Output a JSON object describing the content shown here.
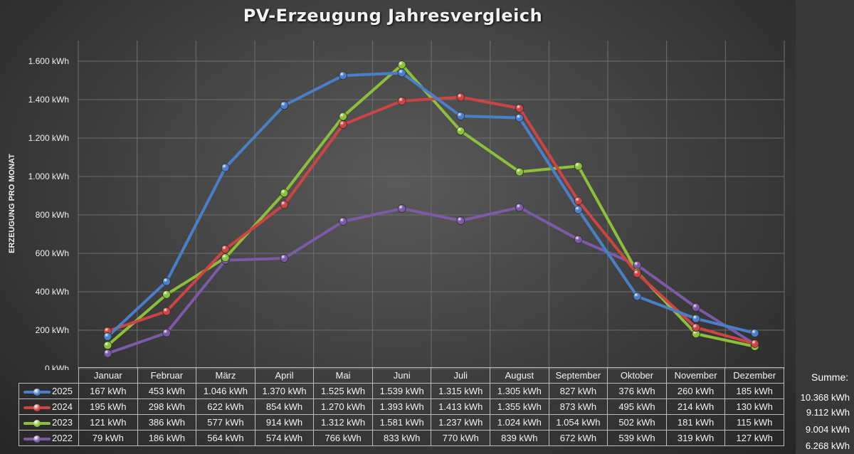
{
  "chart_data": {
    "type": "line",
    "title": "PV-Erzeugung Jahresvergleich",
    "xlabel": "",
    "ylabel": "ERZEUGUNG PRO MONAT",
    "ylim": [
      0,
      1700
    ],
    "yticks": [
      0,
      200,
      400,
      600,
      800,
      1000,
      1200,
      1400,
      1600
    ],
    "ytick_labels": [
      "0 kWh",
      "200 kWh",
      "400 kWh",
      "600 kWh",
      "800 kWh",
      "1.000 kWh",
      "1.200 kWh",
      "1.400 kWh",
      "1.600 kWh"
    ],
    "grid": true,
    "legend": "data-table",
    "categories": [
      "Januar",
      "Februar",
      "März",
      "April",
      "Mai",
      "Juni",
      "Juli",
      "August",
      "September",
      "Oktober",
      "November",
      "Dezember"
    ],
    "series": [
      {
        "name": "2025",
        "color": "#4a7fc8",
        "values": [
          167,
          453,
          1046,
          1370,
          1525,
          1539,
          1315,
          1305,
          827,
          376,
          260,
          185
        ],
        "labels": [
          "167 kWh",
          "453 kWh",
          "1.046 kWh",
          "1.370 kWh",
          "1.525 kWh",
          "1.539 kWh",
          "1.315 kWh",
          "1.305 kWh",
          "827 kWh",
          "376 kWh",
          "260 kWh",
          "185 kWh"
        ]
      },
      {
        "name": "2024",
        "color": "#cc4444",
        "values": [
          195,
          298,
          622,
          854,
          1270,
          1393,
          1413,
          1355,
          873,
          495,
          214,
          130
        ],
        "labels": [
          "195 kWh",
          "298 kWh",
          "622 kWh",
          "854 kWh",
          "1.270 kWh",
          "1.393 kWh",
          "1.413 kWh",
          "1.355 kWh",
          "873 kWh",
          "495 kWh",
          "214 kWh",
          "130 kWh"
        ]
      },
      {
        "name": "2023",
        "color": "#8cbf3a",
        "values": [
          121,
          386,
          577,
          914,
          1312,
          1581,
          1237,
          1024,
          1054,
          502,
          181,
          115
        ],
        "labels": [
          "121 kWh",
          "386 kWh",
          "577 kWh",
          "914 kWh",
          "1.312 kWh",
          "1.581 kWh",
          "1.237 kWh",
          "1.024 kWh",
          "1.054 kWh",
          "502 kWh",
          "181 kWh",
          "115 kWh"
        ]
      },
      {
        "name": "2022",
        "color": "#7b5aa6",
        "values": [
          79,
          186,
          564,
          574,
          766,
          833,
          770,
          839,
          672,
          539,
          319,
          127
        ],
        "labels": [
          "79 kWh",
          "186 kWh",
          "564 kWh",
          "574 kWh",
          "766 kWh",
          "833 kWh",
          "770 kWh",
          "839 kWh",
          "672 kWh",
          "539 kWh",
          "319 kWh",
          "127 kWh"
        ]
      }
    ]
  },
  "summary": {
    "label": "Summe:",
    "totals": [
      "10.368 kWh",
      "9.112 kWh",
      "9.004 kWh",
      "6.268 kWh"
    ]
  }
}
